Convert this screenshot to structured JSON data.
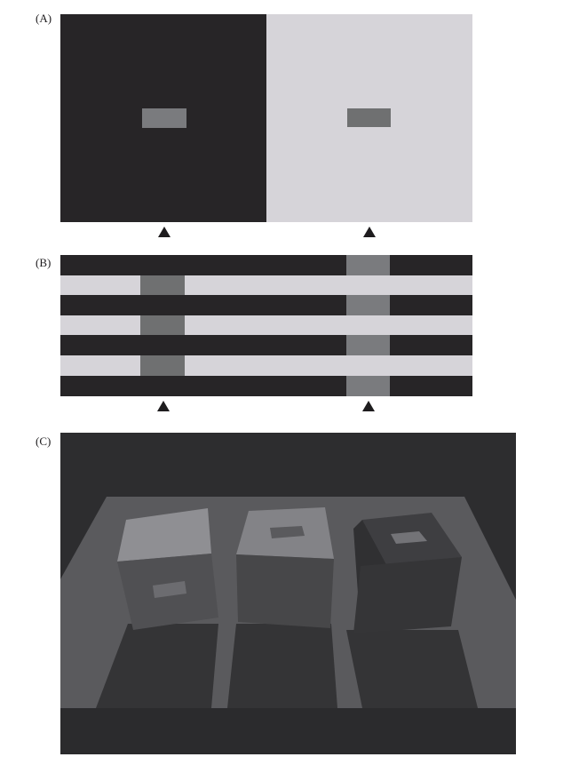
{
  "figure": {
    "panels": [
      {
        "id": "A",
        "label": "(A)"
      },
      {
        "id": "B",
        "label": "(B)"
      },
      {
        "id": "C",
        "label": "(C)"
      }
    ],
    "colors": {
      "dark": "#272527",
      "light": "#d6d4d9",
      "target_gray": "#7a7b7e",
      "target_gray_on_light": "#6f7071",
      "triangle": "#1e1c1e",
      "scene_background": "#2d2d2f",
      "scene_floor": "#5a5a5d",
      "scene_floor_dark": "#343436",
      "cube_top_light": "#8f8f93",
      "cube_top_mid": "#818185",
      "cube_top_dark": "#3e3e41",
      "cube_front": "#505053",
      "cube_side": "#3f3f42",
      "cube_dark_front": "#353537"
    },
    "markers": [
      "triangle-up-icon",
      "triangle-up-icon",
      "triangle-up-icon",
      "triangle-up-icon"
    ]
  }
}
